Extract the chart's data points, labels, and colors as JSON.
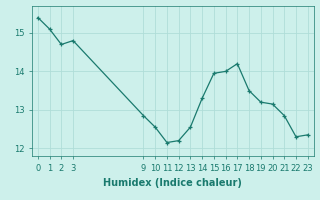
{
  "x": [
    0,
    1,
    2,
    3,
    9,
    10,
    11,
    12,
    13,
    14,
    15,
    16,
    17,
    18,
    19,
    20,
    21,
    22,
    23
  ],
  "y": [
    15.4,
    15.1,
    14.7,
    14.8,
    12.85,
    12.55,
    12.15,
    12.2,
    12.55,
    13.3,
    13.95,
    14.0,
    14.2,
    13.5,
    13.2,
    13.15,
    12.85,
    12.3,
    12.35
  ],
  "line_color": "#1a7a6e",
  "marker_color": "#1a7a6e",
  "bg_color": "#cdf0eb",
  "grid_color": "#b0ddd8",
  "xlabel": "Humidex (Indice chaleur)",
  "ylim": [
    11.8,
    15.7
  ],
  "xlim": [
    -0.5,
    23.5
  ],
  "xticks": [
    0,
    1,
    2,
    3,
    9,
    10,
    11,
    12,
    13,
    14,
    15,
    16,
    17,
    18,
    19,
    20,
    21,
    22,
    23
  ],
  "yticks": [
    12,
    13,
    14,
    15
  ],
  "label_fontsize": 7,
  "tick_fontsize": 6
}
